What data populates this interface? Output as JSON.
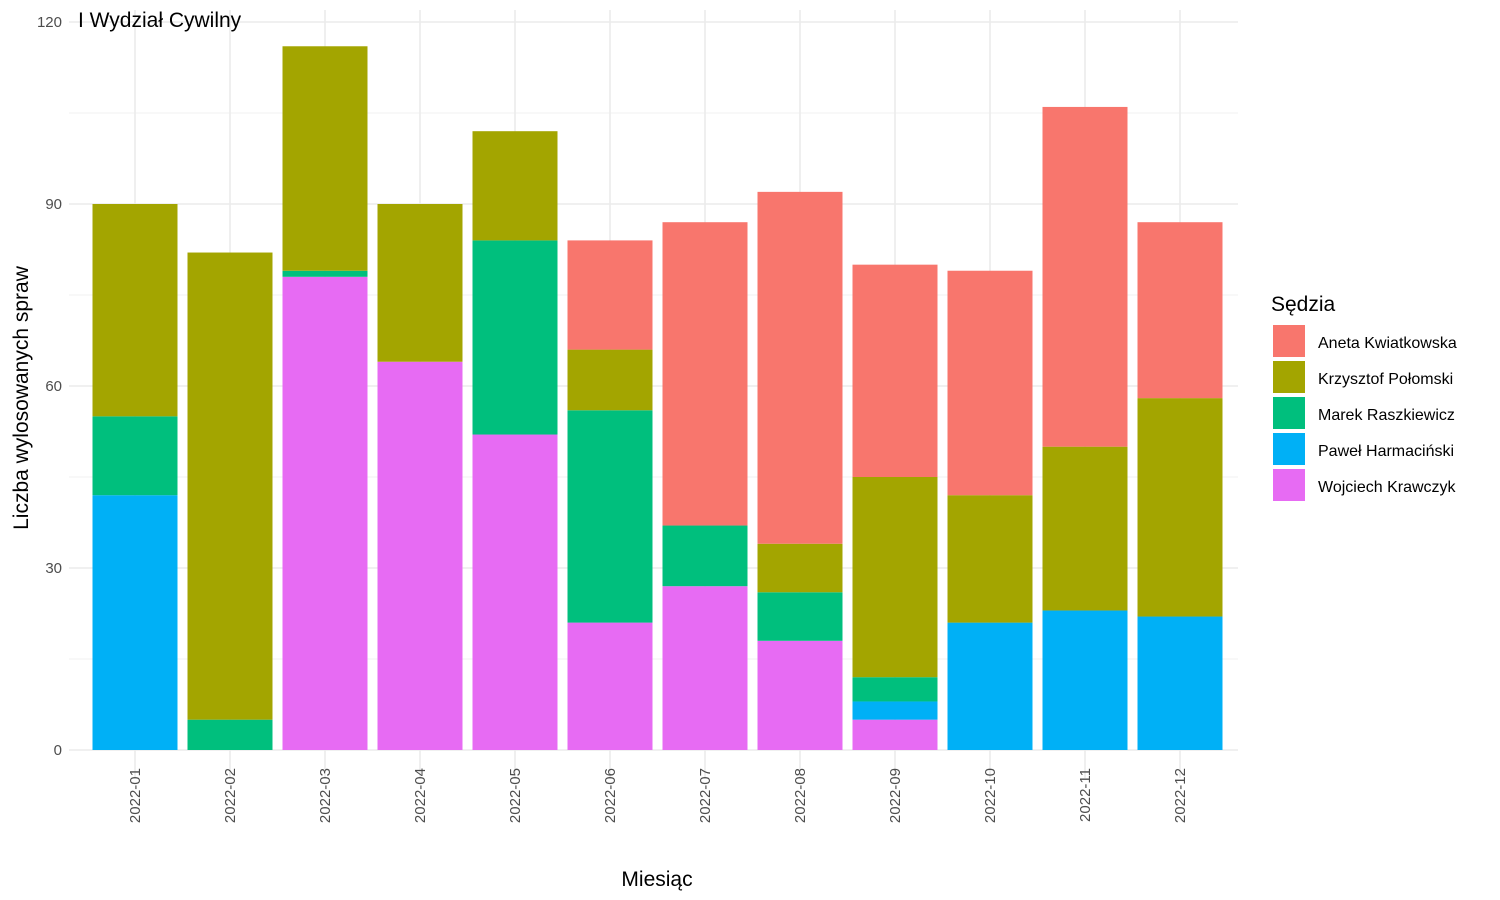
{
  "chart_data": {
    "type": "bar",
    "stacked": true,
    "title": "I Wydział Cywilny",
    "xlabel": "Miesiąc",
    "ylabel": "Liczba wylosowanych spraw",
    "ylim": [
      0,
      120
    ],
    "yticks": [
      0,
      30,
      60,
      90,
      120
    ],
    "grid": true,
    "legend_title": "Sędzia",
    "legend_position": "right",
    "categories": [
      "2022-01",
      "2022-02",
      "2022-03",
      "2022-04",
      "2022-05",
      "2022-06",
      "2022-07",
      "2022-08",
      "2022-09",
      "2022-10",
      "2022-11",
      "2022-12"
    ],
    "series": [
      {
        "name": "Aneta Kwiatkowska",
        "color": "#F8766D",
        "values": [
          0,
          0,
          0,
          0,
          0,
          18,
          50,
          58,
          35,
          37,
          56,
          29
        ]
      },
      {
        "name": "Krzysztof Połomski",
        "color": "#A3A500",
        "values": [
          35,
          77,
          37,
          26,
          18,
          10,
          0,
          8,
          33,
          21,
          27,
          36
        ]
      },
      {
        "name": "Marek Raszkiewicz",
        "color": "#00BF7D",
        "values": [
          13,
          5,
          1,
          0,
          32,
          35,
          10,
          8,
          4,
          0,
          0,
          0
        ]
      },
      {
        "name": "Paweł Harmaciński",
        "color": "#00B0F6",
        "values": [
          42,
          0,
          0,
          0,
          0,
          0,
          0,
          0,
          3,
          21,
          23,
          22
        ]
      },
      {
        "name": "Wojciech Krawczyk",
        "color": "#E76BF3",
        "values": [
          0,
          0,
          78,
          64,
          52,
          21,
          27,
          18,
          5,
          0,
          0,
          0
        ]
      }
    ],
    "stack_order_bottom_to_top": [
      "Wojciech Krawczyk",
      "Paweł Harmaciński",
      "Marek Raszkiewicz",
      "Krzysztof Połomski",
      "Aneta Kwiatkowska"
    ]
  }
}
